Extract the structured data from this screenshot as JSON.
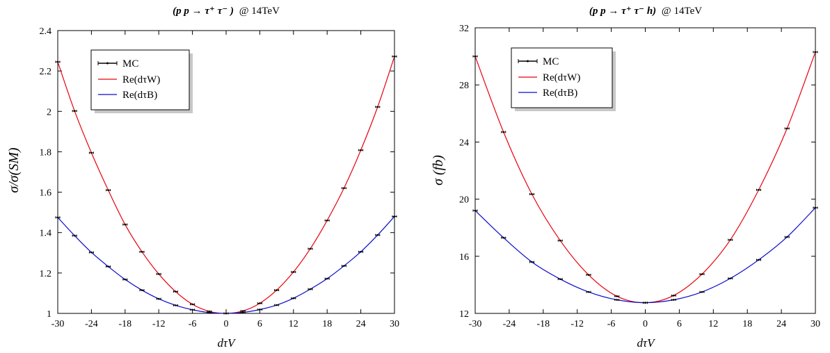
{
  "chart_data": [
    {
      "type": "line",
      "title": "(p p → τ⁺ τ⁻ ) @ 14TeV",
      "title_main": "(p p → τ⁺ τ⁻ )",
      "title_energy": "@ 14TeV",
      "xlabel": "dτV",
      "ylabel": "σ/σ(SM)",
      "xlim": [
        -30,
        30
      ],
      "ylim": [
        1,
        2.4
      ],
      "xticks": [
        "-30",
        "-24",
        "-18",
        "-12",
        "-6",
        "0",
        "6",
        "12",
        "18",
        "24",
        "30"
      ],
      "yticks": [
        "1",
        "1.2",
        "1.4",
        "1.6",
        "1.8",
        "2",
        "2.2",
        "2.4"
      ],
      "legend": {
        "position": "top-left",
        "entries": [
          "MC",
          "Re(dτW)",
          "Re(dτB)"
        ]
      },
      "series": [
        {
          "name": "Re(dτW)",
          "color": "#e8000b",
          "x": [
            -30,
            -27,
            -24,
            -21,
            -18,
            -15,
            -12,
            -9,
            -6,
            -3,
            0,
            3,
            6,
            9,
            12,
            15,
            18,
            21,
            24,
            27,
            30
          ],
          "values": [
            2.245,
            2.002,
            1.795,
            1.61,
            1.44,
            1.305,
            1.195,
            1.108,
            1.045,
            1.01,
            1.0,
            1.012,
            1.05,
            1.115,
            1.205,
            1.32,
            1.46,
            1.62,
            1.808,
            2.022,
            2.272
          ]
        },
        {
          "name": "Re(dτB)",
          "color": "#0a0acc",
          "x": [
            -30,
            -27,
            -24,
            -21,
            -18,
            -15,
            -12,
            -9,
            -6,
            -3,
            0,
            3,
            6,
            9,
            12,
            15,
            18,
            21,
            24,
            27,
            30
          ],
          "values": [
            1.475,
            1.385,
            1.302,
            1.232,
            1.168,
            1.115,
            1.072,
            1.04,
            1.018,
            1.004,
            1.0,
            1.005,
            1.019,
            1.041,
            1.075,
            1.12,
            1.172,
            1.235,
            1.305,
            1.388,
            1.48
          ]
        }
      ]
    },
    {
      "type": "line",
      "title": "(p p → τ⁺ τ⁻ h) @ 14TeV",
      "title_main": "(p p → τ⁺ τ⁻ h)",
      "title_energy": "@ 14TeV",
      "xlabel": "dτV",
      "ylabel": "σ (fb)",
      "xlim": [
        -30,
        30
      ],
      "ylim": [
        12,
        32
      ],
      "xticks": [
        "-30",
        "-24",
        "-18",
        "-12",
        "-6",
        "0",
        "6",
        "12",
        "18",
        "24",
        "30"
      ],
      "yticks": [
        "12",
        "16",
        "20",
        "24",
        "28",
        "32"
      ],
      "legend": {
        "position": "top-left",
        "entries": [
          "MC",
          "Re(dτW)",
          "Re(dτB)"
        ]
      },
      "series": [
        {
          "name": "Re(dτW)",
          "color": "#e8000b",
          "x": [
            -30,
            -25,
            -20,
            -15,
            -10,
            -5,
            0,
            5,
            10,
            15,
            20,
            25,
            30
          ],
          "values": [
            30.0,
            24.7,
            20.35,
            17.1,
            14.7,
            13.2,
            12.75,
            13.25,
            14.75,
            17.15,
            20.65,
            24.95,
            30.3
          ]
        },
        {
          "name": "Re(dτB)",
          "color": "#0a0acc",
          "x": [
            -30,
            -25,
            -20,
            -15,
            -10,
            -5,
            0,
            5,
            10,
            15,
            20,
            25,
            30
          ],
          "values": [
            19.2,
            17.3,
            15.6,
            14.4,
            13.5,
            12.95,
            12.75,
            12.95,
            13.5,
            14.45,
            15.75,
            17.35,
            19.4
          ]
        }
      ]
    }
  ]
}
